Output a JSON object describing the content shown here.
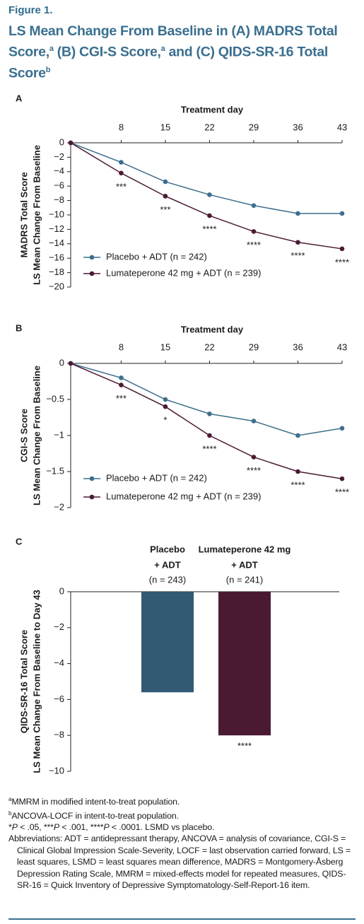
{
  "header": {
    "figure_label": "Figure 1.",
    "title": [
      "LS Mean Change From Baseline in (A) MADRS Total Score,",
      "a",
      " (B) CGI-S Score,",
      "a",
      " and (C) QIDS-SR-16 Total Score",
      "b"
    ]
  },
  "chart_data": [
    {
      "type": "line",
      "panel_label": "A",
      "xlabel": "Treatment day",
      "ylabel": [
        "MADRS Total Score",
        "LS Mean Change From Baseline"
      ],
      "x": [
        0,
        8,
        15,
        22,
        29,
        36,
        43
      ],
      "xlim": [
        0,
        43
      ],
      "xticks": [
        8,
        15,
        22,
        29,
        36,
        43
      ],
      "ylim": [
        -20,
        0
      ],
      "yticks": [
        0,
        {
          "value": -2,
          "label": "−2"
        },
        {
          "value": -4,
          "label": "−4"
        },
        {
          "value": -6,
          "label": "−6"
        },
        {
          "value": -8,
          "label": "−8"
        },
        {
          "value": -10,
          "label": "−10"
        },
        {
          "value": -12,
          "label": "−12"
        },
        {
          "value": -14,
          "label": "−14"
        },
        {
          "value": -16,
          "label": "−16"
        },
        {
          "value": -18,
          "label": "−18"
        },
        {
          "value": -20,
          "label": "−20"
        }
      ],
      "series": [
        {
          "name": "Placebo + ADT (n = 242)",
          "color": "#3d6f8c",
          "values": [
            0,
            -2.7,
            -5.4,
            -7.2,
            -8.7,
            -9.8,
            -9.8
          ]
        },
        {
          "name": "Lumateperone 42 mg + ADT (n = 239)",
          "color": "#4b1a34",
          "values": [
            0,
            -4.2,
            -7.4,
            -10.1,
            -12.3,
            -13.8,
            -14.7
          ]
        }
      ],
      "significance": [
        null,
        "***",
        "***",
        "****",
        "****",
        "****",
        "****"
      ],
      "legend": "lower left"
    },
    {
      "type": "line",
      "panel_label": "B",
      "xlabel": "Treatment day",
      "ylabel": [
        "CGI-S Score",
        "LS Mean Change From Baseline"
      ],
      "x": [
        0,
        8,
        15,
        22,
        29,
        36,
        43
      ],
      "xlim": [
        0,
        43
      ],
      "xticks": [
        8,
        15,
        22,
        29,
        36,
        43
      ],
      "ylim": [
        -2,
        0
      ],
      "yticks": [
        0,
        {
          "value": -0.5,
          "label": "−0.5"
        },
        {
          "value": -1,
          "label": "−1"
        },
        {
          "value": -1.5,
          "label": "−1.5"
        },
        {
          "value": -2,
          "label": "−2"
        }
      ],
      "series": [
        {
          "name": "Placebo + ADT (n = 242)",
          "color": "#3d6f8c",
          "values": [
            0,
            -0.2,
            -0.5,
            -0.7,
            -0.8,
            -1.0,
            -0.9
          ]
        },
        {
          "name": "Lumateperone 42 mg + ADT (n = 239)",
          "color": "#4b1a34",
          "values": [
            0,
            -0.3,
            -0.6,
            -1.0,
            -1.3,
            -1.5,
            -1.6
          ]
        }
      ],
      "significance": [
        null,
        "***",
        "*",
        "****",
        "****",
        "****",
        "****"
      ],
      "legend": "lower left"
    },
    {
      "type": "bar",
      "panel_label": "C",
      "ylabel": [
        "QIDS-SR-16 Total Score",
        "LS Mean Change From Baseline to Day 43"
      ],
      "categories": [
        [
          "Placebo",
          "+ ADT"
        ],
        [
          "Lumateperone 42 mg",
          "+ ADT"
        ]
      ],
      "sample_sizes": [
        "(n = 243)",
        "(n = 241)"
      ],
      "values": [
        -5.6,
        -8.0
      ],
      "colors": [
        "#325a73",
        "#4a1a33"
      ],
      "ylim": [
        -10,
        0
      ],
      "yticks": [
        0,
        {
          "value": -2,
          "label": "−2"
        },
        {
          "value": -4,
          "label": "−4"
        },
        {
          "value": -6,
          "label": "−6"
        },
        {
          "value": -8,
          "label": "−8"
        },
        {
          "value": -10,
          "label": "−10"
        }
      ],
      "significance": [
        null,
        "****"
      ]
    }
  ],
  "footnotes": [
    {
      "mark": "a",
      "text": "MMRM in modified intent-to-treat population."
    },
    {
      "mark": "b",
      "text": "ANCOVA-LOCF in intent-to-treat population."
    }
  ],
  "significance_note": [
    "*",
    "P",
    " < .05, ***",
    "P",
    " < .001, ****",
    "P",
    " < .0001. LSMD vs placebo."
  ],
  "abbreviations": "Abbreviations: ADT = antidepressant therapy, ANCOVA = analysis of covariance, CGI-S = Clinical Global Impression Scale-Severity, LOCF = last observation carried forward, LS = least squares, LSMD = least squares mean difference, MADRS = Montgomery-Åsberg Depression Rating Scale, MMRM = mixed-effects model for repeated measures, QIDS-SR-16 = Quick Inventory of Depressive Symptomatology-Self-Report-16 item."
}
